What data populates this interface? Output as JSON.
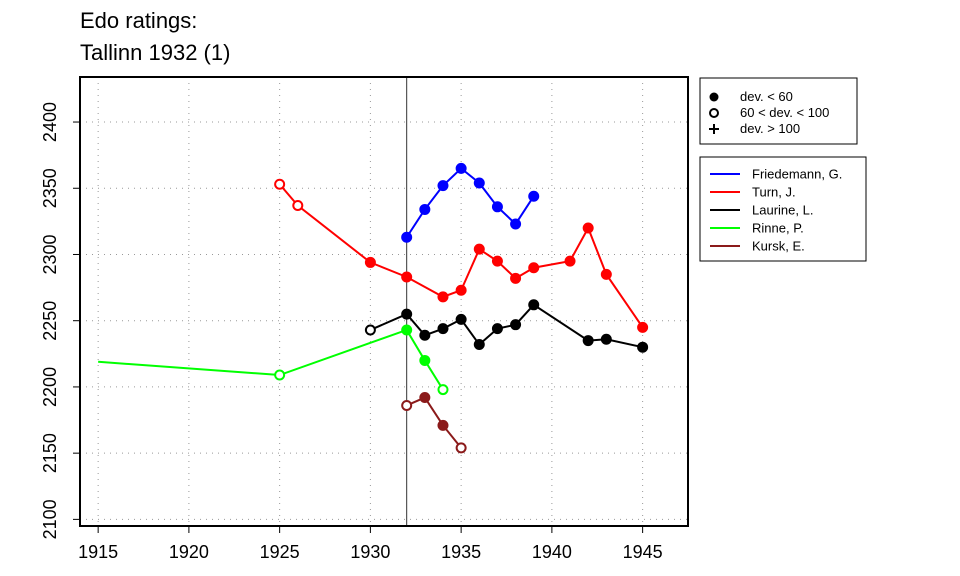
{
  "chart_data": {
    "type": "line",
    "title_lines": [
      "Edo ratings:",
      "Tallinn 1932 (1)"
    ],
    "xlabel": "",
    "ylabel": "",
    "xlim": [
      1914,
      1947.5
    ],
    "ylim": [
      2095,
      2434
    ],
    "x_ticks": [
      1915,
      1920,
      1925,
      1930,
      1935,
      1940,
      1945
    ],
    "y_ticks": [
      2100,
      2150,
      2200,
      2250,
      2300,
      2350,
      2400
    ],
    "grid": true,
    "event_year": 1932,
    "marker_legend": [
      {
        "marker": "filled-circle",
        "label": "dev. < 60"
      },
      {
        "marker": "open-circle",
        "label": "60 < dev. < 100"
      },
      {
        "marker": "plus",
        "label": "dev. > 100"
      }
    ],
    "legend_position": "right, outside plot",
    "series": [
      {
        "name": "Friedemann, G.",
        "color": "#0000ff",
        "points": [
          {
            "x": 1932,
            "y": 2313,
            "m": "filled"
          },
          {
            "x": 1933,
            "y": 2334,
            "m": "filled"
          },
          {
            "x": 1934,
            "y": 2352,
            "m": "filled"
          },
          {
            "x": 1935,
            "y": 2365,
            "m": "filled"
          },
          {
            "x": 1936,
            "y": 2354,
            "m": "filled"
          },
          {
            "x": 1937,
            "y": 2336,
            "m": "filled"
          },
          {
            "x": 1938,
            "y": 2323,
            "m": "filled"
          },
          {
            "x": 1939,
            "y": 2344,
            "m": "filled"
          }
        ]
      },
      {
        "name": "Turn, J.",
        "color": "#ff0000",
        "points": [
          {
            "x": 1925,
            "y": 2353,
            "m": "open"
          },
          {
            "x": 1926,
            "y": 2337,
            "m": "open"
          },
          {
            "x": 1930,
            "y": 2294,
            "m": "filled"
          },
          {
            "x": 1932,
            "y": 2283,
            "m": "filled"
          },
          {
            "x": 1934,
            "y": 2268,
            "m": "filled"
          },
          {
            "x": 1935,
            "y": 2273,
            "m": "filled"
          },
          {
            "x": 1936,
            "y": 2304,
            "m": "filled"
          },
          {
            "x": 1937,
            "y": 2295,
            "m": "filled"
          },
          {
            "x": 1938,
            "y": 2282,
            "m": "filled"
          },
          {
            "x": 1939,
            "y": 2290,
            "m": "filled"
          },
          {
            "x": 1941,
            "y": 2295,
            "m": "filled"
          },
          {
            "x": 1942,
            "y": 2320,
            "m": "filled"
          },
          {
            "x": 1943,
            "y": 2285,
            "m": "filled"
          },
          {
            "x": 1945,
            "y": 2245,
            "m": "filled"
          }
        ]
      },
      {
        "name": "Laurine, L.",
        "color": "#000000",
        "points": [
          {
            "x": 1930,
            "y": 2243,
            "m": "open"
          },
          {
            "x": 1932,
            "y": 2255,
            "m": "filled"
          },
          {
            "x": 1933,
            "y": 2239,
            "m": "filled"
          },
          {
            "x": 1934,
            "y": 2244,
            "m": "filled"
          },
          {
            "x": 1935,
            "y": 2251,
            "m": "filled"
          },
          {
            "x": 1936,
            "y": 2232,
            "m": "filled"
          },
          {
            "x": 1937,
            "y": 2244,
            "m": "filled"
          },
          {
            "x": 1938,
            "y": 2247,
            "m": "filled"
          },
          {
            "x": 1939,
            "y": 2262,
            "m": "filled"
          },
          {
            "x": 1942,
            "y": 2235,
            "m": "filled"
          },
          {
            "x": 1943,
            "y": 2236,
            "m": "filled"
          },
          {
            "x": 1945,
            "y": 2230,
            "m": "filled"
          }
        ]
      },
      {
        "name": "Rinne, P.",
        "color": "#00ff00",
        "points": [
          {
            "x": 1915,
            "y": 2219,
            "m": "none"
          },
          {
            "x": 1925,
            "y": 2209,
            "m": "open"
          },
          {
            "x": 1932,
            "y": 2243,
            "m": "filled"
          },
          {
            "x": 1933,
            "y": 2220,
            "m": "filled"
          },
          {
            "x": 1934,
            "y": 2198,
            "m": "open"
          }
        ]
      },
      {
        "name": "Kursk, E.",
        "color": "#8b1a1a",
        "points": [
          {
            "x": 1932,
            "y": 2186,
            "m": "open"
          },
          {
            "x": 1933,
            "y": 2192,
            "m": "filled"
          },
          {
            "x": 1934,
            "y": 2171,
            "m": "filled"
          },
          {
            "x": 1935,
            "y": 2154,
            "m": "open"
          }
        ]
      }
    ]
  }
}
